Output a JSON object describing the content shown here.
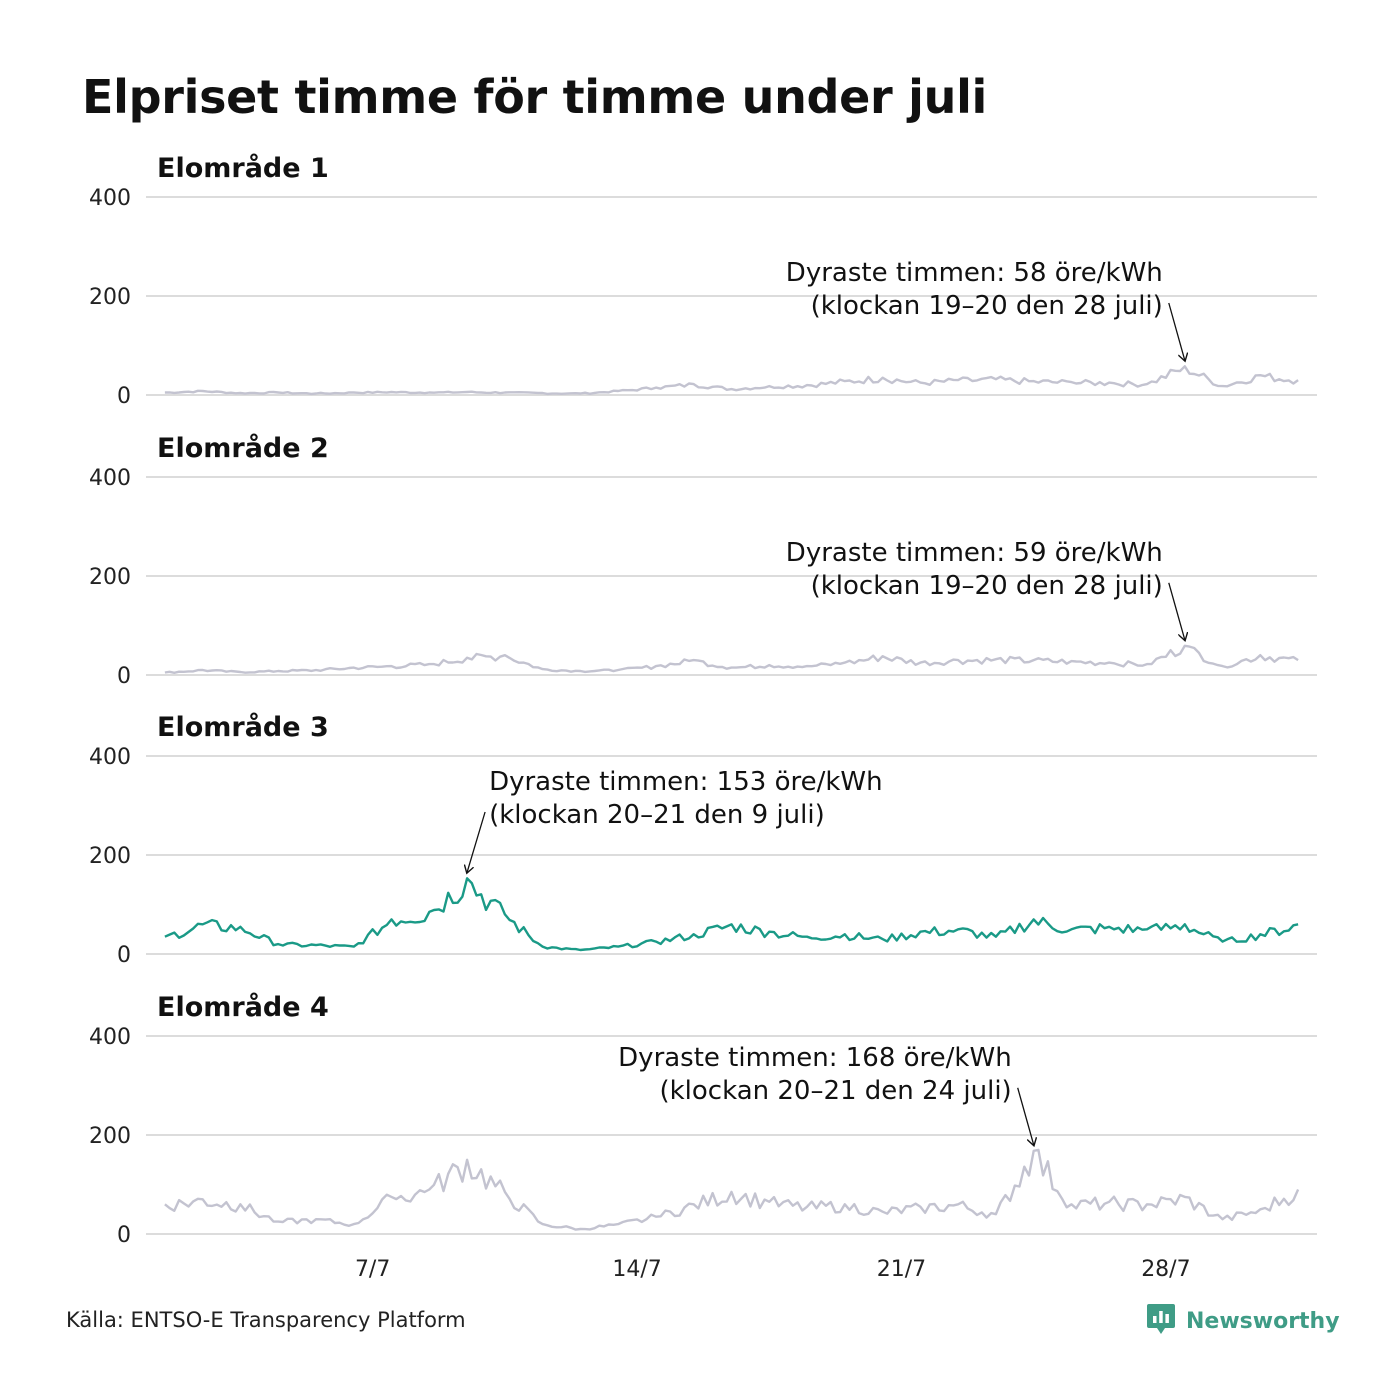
{
  "title": "Elpriset timme för timme under juli",
  "source": "Källa: ENTSO-E Transparency Platform",
  "brand": {
    "name": "Newsworthy",
    "icon": "newsworthy-logo-icon"
  },
  "colors": {
    "highlight": "#1a9a87",
    "muted": "#c3c3d0",
    "grid": "#dcdcdc",
    "brand": "#3f9c86"
  },
  "chart_data": {
    "type": "line",
    "unit": "öre/kWh",
    "x_ticks": [
      "7/7",
      "14/7",
      "21/7",
      "28/7"
    ],
    "ylim": [
      0,
      400
    ],
    "y_ticks": [
      0,
      200,
      400
    ],
    "grid": true,
    "panels": [
      {
        "name": "Elområde 1",
        "highlight": false,
        "annotation": {
          "line1": "Dyraste timmen: 58 öre/kWh",
          "line2": "(klockan 19–20 den 28 juli)",
          "align": "end"
        },
        "series": [
          {
            "x": "1/7",
            "y": 5
          },
          {
            "x": "2/7",
            "y": 8
          },
          {
            "x": "3/7",
            "y": 4
          },
          {
            "x": "4/7",
            "y": 5
          },
          {
            "x": "5/7",
            "y": 3
          },
          {
            "x": "6/7",
            "y": 5
          },
          {
            "x": "7/7",
            "y": 6
          },
          {
            "x": "8/7",
            "y": 5
          },
          {
            "x": "9/7",
            "y": 6
          },
          {
            "x": "10/7",
            "y": 5
          },
          {
            "x": "11/7",
            "y": 4
          },
          {
            "x": "12/7",
            "y": 3
          },
          {
            "x": "13/7",
            "y": 8
          },
          {
            "x": "14/7",
            "y": 15
          },
          {
            "x": "15/7",
            "y": 22
          },
          {
            "x": "16/7",
            "y": 12
          },
          {
            "x": "17/7",
            "y": 18
          },
          {
            "x": "18/7",
            "y": 20
          },
          {
            "x": "19/7",
            "y": 28
          },
          {
            "x": "20/7",
            "y": 35
          },
          {
            "x": "21/7",
            "y": 25
          },
          {
            "x": "22/7",
            "y": 30
          },
          {
            "x": "23/7",
            "y": 32
          },
          {
            "x": "24/7",
            "y": 28
          },
          {
            "x": "25/7",
            "y": 26
          },
          {
            "x": "26/7",
            "y": 25
          },
          {
            "x": "27/7",
            "y": 22
          },
          {
            "x": "28/7",
            "y": 58
          },
          {
            "x": "29/7",
            "y": 18
          },
          {
            "x": "30/7",
            "y": 40
          },
          {
            "x": "31/7",
            "y": 30
          }
        ]
      },
      {
        "name": "Elområde 2",
        "highlight": false,
        "annotation": {
          "line1": "Dyraste timmen: 59 öre/kWh",
          "line2": "(klockan 19–20 den 28 juli)",
          "align": "end"
        },
        "series": [
          {
            "x": "1/7",
            "y": 5
          },
          {
            "x": "2/7",
            "y": 10
          },
          {
            "x": "3/7",
            "y": 6
          },
          {
            "x": "4/7",
            "y": 8
          },
          {
            "x": "5/7",
            "y": 10
          },
          {
            "x": "6/7",
            "y": 15
          },
          {
            "x": "7/7",
            "y": 18
          },
          {
            "x": "8/7",
            "y": 22
          },
          {
            "x": "9/7",
            "y": 35
          },
          {
            "x": "10/7",
            "y": 40
          },
          {
            "x": "11/7",
            "y": 12
          },
          {
            "x": "12/7",
            "y": 8
          },
          {
            "x": "13/7",
            "y": 10
          },
          {
            "x": "14/7",
            "y": 18
          },
          {
            "x": "15/7",
            "y": 30
          },
          {
            "x": "16/7",
            "y": 15
          },
          {
            "x": "17/7",
            "y": 20
          },
          {
            "x": "18/7",
            "y": 18
          },
          {
            "x": "19/7",
            "y": 25
          },
          {
            "x": "20/7",
            "y": 38
          },
          {
            "x": "21/7",
            "y": 25
          },
          {
            "x": "22/7",
            "y": 30
          },
          {
            "x": "23/7",
            "y": 32
          },
          {
            "x": "24/7",
            "y": 30
          },
          {
            "x": "25/7",
            "y": 28
          },
          {
            "x": "26/7",
            "y": 25
          },
          {
            "x": "27/7",
            "y": 22
          },
          {
            "x": "28/7",
            "y": 59
          },
          {
            "x": "29/7",
            "y": 18
          },
          {
            "x": "30/7",
            "y": 40
          },
          {
            "x": "31/7",
            "y": 30
          }
        ]
      },
      {
        "name": "Elområde 3",
        "highlight": true,
        "annotation": {
          "line1": "Dyraste timmen: 153 öre/kWh",
          "line2": "(klockan 20–21 den 9 juli)",
          "align": "start"
        },
        "series": [
          {
            "x": "1/7",
            "y": 35
          },
          {
            "x": "2/7",
            "y": 60
          },
          {
            "x": "3/7",
            "y": 55
          },
          {
            "x": "4/7",
            "y": 20
          },
          {
            "x": "5/7",
            "y": 18
          },
          {
            "x": "6/7",
            "y": 15
          },
          {
            "x": "7/7",
            "y": 70
          },
          {
            "x": "8/7",
            "y": 85
          },
          {
            "x": "9/7",
            "y": 153
          },
          {
            "x": "10/7",
            "y": 80
          },
          {
            "x": "11/7",
            "y": 15
          },
          {
            "x": "12/7",
            "y": 8
          },
          {
            "x": "13/7",
            "y": 15
          },
          {
            "x": "14/7",
            "y": 25
          },
          {
            "x": "15/7",
            "y": 40
          },
          {
            "x": "16/7",
            "y": 60
          },
          {
            "x": "17/7",
            "y": 45
          },
          {
            "x": "18/7",
            "y": 35
          },
          {
            "x": "19/7",
            "y": 40
          },
          {
            "x": "20/7",
            "y": 30
          },
          {
            "x": "21/7",
            "y": 45
          },
          {
            "x": "22/7",
            "y": 50
          },
          {
            "x": "23/7",
            "y": 35
          },
          {
            "x": "24/7",
            "y": 70
          },
          {
            "x": "25/7",
            "y": 50
          },
          {
            "x": "26/7",
            "y": 55
          },
          {
            "x": "27/7",
            "y": 50
          },
          {
            "x": "28/7",
            "y": 60
          },
          {
            "x": "29/7",
            "y": 25
          },
          {
            "x": "30/7",
            "y": 40
          },
          {
            "x": "31/7",
            "y": 60
          }
        ]
      },
      {
        "name": "Elområde 4",
        "highlight": false,
        "annotation": {
          "line1": "Dyraste timmen: 168 öre/kWh",
          "line2": "(klockan 20–21 den 24 juli)",
          "align": "end"
        },
        "series": [
          {
            "x": "1/7",
            "y": 60
          },
          {
            "x": "2/7",
            "y": 70
          },
          {
            "x": "3/7",
            "y": 60
          },
          {
            "x": "4/7",
            "y": 25
          },
          {
            "x": "5/7",
            "y": 30
          },
          {
            "x": "6/7",
            "y": 20
          },
          {
            "x": "7/7",
            "y": 75
          },
          {
            "x": "8/7",
            "y": 90
          },
          {
            "x": "9/7",
            "y": 150
          },
          {
            "x": "10/7",
            "y": 85
          },
          {
            "x": "11/7",
            "y": 20
          },
          {
            "x": "12/7",
            "y": 10
          },
          {
            "x": "13/7",
            "y": 20
          },
          {
            "x": "14/7",
            "y": 35
          },
          {
            "x": "15/7",
            "y": 60
          },
          {
            "x": "16/7",
            "y": 85
          },
          {
            "x": "17/7",
            "y": 65
          },
          {
            "x": "18/7",
            "y": 55
          },
          {
            "x": "19/7",
            "y": 60
          },
          {
            "x": "20/7",
            "y": 45
          },
          {
            "x": "21/7",
            "y": 55
          },
          {
            "x": "22/7",
            "y": 60
          },
          {
            "x": "23/7",
            "y": 40
          },
          {
            "x": "24/7",
            "y": 168
          },
          {
            "x": "25/7",
            "y": 60
          },
          {
            "x": "26/7",
            "y": 65
          },
          {
            "x": "27/7",
            "y": 60
          },
          {
            "x": "28/7",
            "y": 75
          },
          {
            "x": "29/7",
            "y": 30
          },
          {
            "x": "30/7",
            "y": 50
          },
          {
            "x": "31/7",
            "y": 90
          }
        ]
      }
    ]
  }
}
